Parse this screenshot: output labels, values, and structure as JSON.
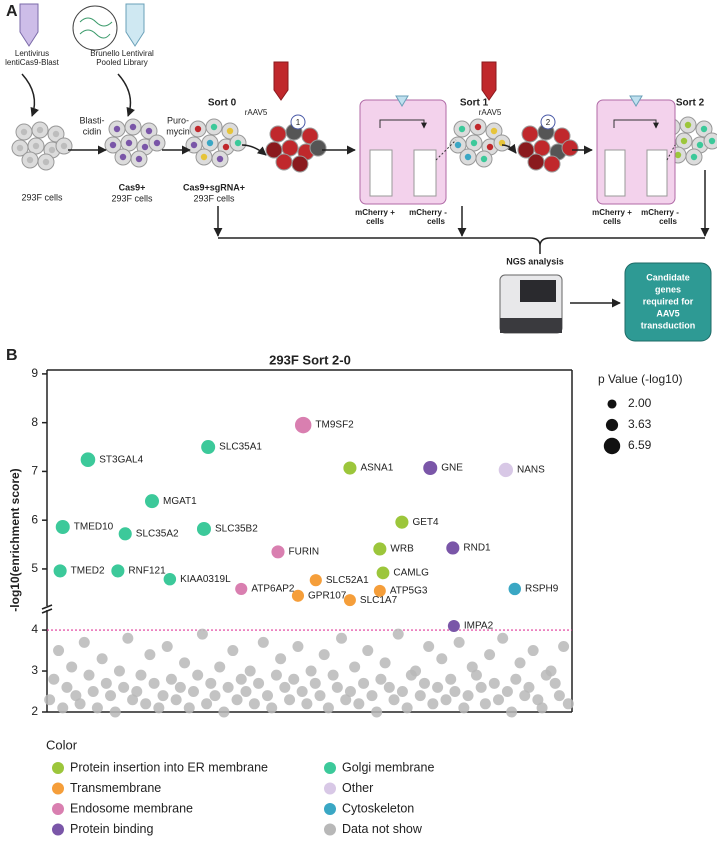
{
  "panel_a": {
    "label": "A",
    "lentivirus": [
      "Lentivirus",
      "lentiCas9-Blast"
    ],
    "library": [
      "Brunello Lentiviral",
      "Pooled Library"
    ],
    "blasticidin": [
      "Blasti-",
      "cidin"
    ],
    "puromycin": [
      "Puro-",
      "mycin"
    ],
    "sorts": [
      "Sort 0",
      "Sort 1",
      "Sort 2"
    ],
    "raav": [
      "rAAV5",
      "rAAV5"
    ],
    "rounds": [
      "1",
      "2"
    ],
    "cells": [
      [
        "293F cells"
      ],
      [
        "Cas9+",
        "293F cells"
      ],
      [
        "Cas9+sgRNA+",
        "293F cells"
      ]
    ],
    "mcherry_pos": [
      "mCherry +",
      "cells"
    ],
    "mcherry_neg": [
      "mCherry -",
      "cells"
    ],
    "ngs": "NGS analysis",
    "result": [
      "Candidate",
      "genes",
      "required for",
      "AAV5",
      "transduction"
    ]
  },
  "panel_b_label": "B",
  "chart_data": {
    "type": "scatter",
    "title": "293F Sort 2-0",
    "y_label": "-log10(enrichment score)",
    "xlim": [
      0,
      100
    ],
    "ylim_segments": [
      [
        2,
        4.49
      ],
      [
        4.24,
        9.08
      ]
    ],
    "yticks": [
      2,
      3,
      4,
      5,
      6,
      7,
      8,
      9
    ],
    "threshold": 4,
    "threshold_color": "#e0389a",
    "legend_title": "Color",
    "size_legend": {
      "title": "p Value (-log10)",
      "values": [
        2.0,
        3.63,
        6.59
      ],
      "value_labels": [
        "2.00",
        "3.63",
        "6.59"
      ]
    },
    "series": [
      {
        "name": "Protein insertion into ER membrane",
        "color": "#9cc63b",
        "labels": [
          "ASNA1",
          "GET4",
          "WRB",
          "CAMLG"
        ],
        "x": [
          57.7,
          67.6,
          63.4,
          64.0
        ],
        "values": [
          7.07,
          5.96,
          5.41,
          4.92
        ],
        "sizes": [
          4.2,
          4.2,
          4.2,
          4.0
        ]
      },
      {
        "name": "Transmembrane",
        "color": "#f59e3a",
        "labels": [
          "SLC52A1",
          "GPR107",
          "SLC1A7",
          "ATP5G3"
        ],
        "x": [
          51.2,
          47.8,
          57.7,
          63.4
        ],
        "values": [
          4.77,
          4.45,
          4.36,
          4.55
        ],
        "sizes": [
          3.6,
          3.6,
          3.5,
          3.5
        ]
      },
      {
        "name": "Endosome membrane",
        "color": "#d97fb0",
        "labels": [
          "TM9SF2",
          "FURIN",
          "ATP6AP2"
        ],
        "x": [
          48.8,
          44.0,
          37.0
        ],
        "values": [
          7.95,
          5.35,
          4.59
        ],
        "sizes": [
          6.59,
          4.2,
          3.6
        ]
      },
      {
        "name": "Protein binding",
        "color": "#7a56a8",
        "labels": [
          "GNE",
          "RND1",
          "IMPA2"
        ],
        "x": [
          73.0,
          77.3,
          77.5
        ],
        "values": [
          7.07,
          5.43,
          4.1
        ],
        "sizes": [
          4.8,
          4.2,
          3.5
        ]
      },
      {
        "name": "Golgi membrane",
        "color": "#3cc99a",
        "labels": [
          "ST3GAL4",
          "SLC35A1",
          "MGAT1",
          "TMED10",
          "SLC35A2",
          "SLC35B2",
          "TMED2",
          "RNF121",
          "KIAA0319L"
        ],
        "x": [
          7.8,
          30.7,
          20.0,
          3.0,
          14.9,
          29.9,
          2.5,
          13.5,
          23.4
        ],
        "values": [
          7.24,
          7.5,
          6.39,
          5.86,
          5.72,
          5.82,
          4.96,
          4.96,
          4.79
        ],
        "sizes": [
          5.2,
          4.8,
          4.8,
          4.8,
          4.2,
          4.8,
          4.2,
          4.2,
          3.8
        ]
      },
      {
        "name": "Other",
        "color": "#d8c8e6",
        "labels": [
          "NANS"
        ],
        "x": [
          87.4
        ],
        "values": [
          7.03
        ],
        "sizes": [
          5.0
        ]
      },
      {
        "name": "Cytoskeleton",
        "color": "#3aa7c4",
        "labels": [
          "RSPH9"
        ],
        "x": [
          89.1
        ],
        "values": [
          4.59
        ],
        "sizes": [
          3.8
        ]
      },
      {
        "name": "Data not show",
        "color": "#b8b8b8",
        "x": [
          0.5,
          1.3,
          2.2,
          3.0,
          3.8,
          4.7,
          5.5,
          6.3,
          7.1,
          8.0,
          8.8,
          9.6,
          10.5,
          11.3,
          12.1,
          13.0,
          13.8,
          14.6,
          15.4,
          16.3,
          17.1,
          17.9,
          18.8,
          19.6,
          20.4,
          21.3,
          22.1,
          22.9,
          23.7,
          24.6,
          25.4,
          26.2,
          27.1,
          27.9,
          28.7,
          29.6,
          30.4,
          31.2,
          32.0,
          32.9,
          33.7,
          34.5,
          35.4,
          36.2,
          37.0,
          37.9,
          38.7,
          39.5,
          40.3,
          41.2,
          42.0,
          42.8,
          43.7,
          44.5,
          45.3,
          46.2,
          47.0,
          47.8,
          48.6,
          49.5,
          50.3,
          51.1,
          52.0,
          52.8,
          53.6,
          54.5,
          55.3,
          56.1,
          56.9,
          57.8,
          58.6,
          59.4,
          60.3,
          61.1,
          61.9,
          62.8,
          63.6,
          64.4,
          65.2,
          66.1,
          66.9,
          67.7,
          68.6,
          69.4,
          70.2,
          71.1,
          71.9,
          72.7,
          73.5,
          74.4,
          75.2,
          76.0,
          76.9,
          77.7,
          78.5,
          79.4,
          80.2,
          81.0,
          81.8,
          82.7,
          83.5,
          84.3,
          85.2,
          86.0,
          86.8,
          87.7,
          88.5,
          89.3,
          90.1,
          91.0,
          91.8,
          92.6,
          93.5,
          94.3,
          95.1,
          96.0,
          96.8,
          97.6,
          98.4,
          99.3
        ],
        "values": [
          2.3,
          2.8,
          3.5,
          2.1,
          2.6,
          3.1,
          2.4,
          2.2,
          3.7,
          2.9,
          2.5,
          2.1,
          3.3,
          2.7,
          2.4,
          2.0,
          3.0,
          2.6,
          3.8,
          2.3,
          2.5,
          2.9,
          2.2,
          3.4,
          2.7,
          2.1,
          2.4,
          3.6,
          2.8,
          2.3,
          2.6,
          3.2,
          2.1,
          2.5,
          2.9,
          3.9,
          2.2,
          2.7,
          2.4,
          3.1,
          2.0,
          2.6,
          3.5,
          2.3,
          2.8,
          2.5,
          3.0,
          2.2,
          2.7,
          3.7,
          2.4,
          2.1,
          2.9,
          3.3,
          2.6,
          2.3,
          2.8,
          3.6,
          2.5,
          2.2,
          3.0,
          2.7,
          2.4,
          3.4,
          2.1,
          2.9,
          2.6,
          3.8,
          2.3,
          2.5,
          3.1,
          2.2,
          2.7,
          3.5,
          2.4,
          2.0,
          2.8,
          3.2,
          2.6,
          2.3,
          3.9,
          2.5,
          2.1,
          2.9,
          3.0,
          2.4,
          2.7,
          3.6,
          2.2,
          2.6,
          3.3,
          2.3,
          2.8,
          2.5,
          3.7,
          2.1,
          2.4,
          3.1,
          2.9,
          2.6,
          2.2,
          3.4,
          2.7,
          2.3,
          3.8,
          2.5,
          2.0,
          2.8,
          3.2,
          2.4,
          2.6,
          3.5,
          2.3,
          2.1,
          2.9,
          3.0,
          2.7,
          2.4,
          3.6,
          2.2
        ]
      }
    ]
  }
}
